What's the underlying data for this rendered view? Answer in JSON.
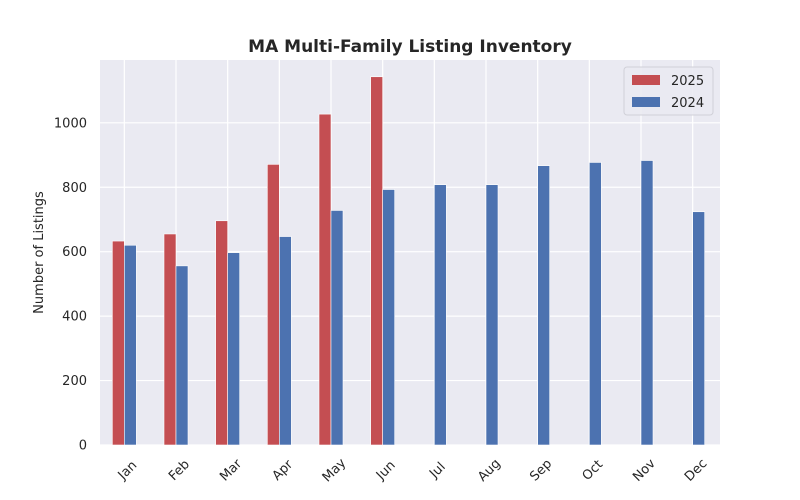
{
  "chart_data": {
    "type": "bar",
    "title": "MA Multi-Family Listing Inventory",
    "xlabel": "",
    "ylabel": "Number of Listings",
    "categories": [
      "Jan",
      "Feb",
      "Mar",
      "Apr",
      "May",
      "Jun",
      "Jul",
      "Aug",
      "Sep",
      "Oct",
      "Nov",
      "Dec"
    ],
    "series": [
      {
        "name": "2025",
        "color": "#c44e52",
        "values": [
          633,
          655,
          696,
          871,
          1027,
          1143,
          null,
          null,
          null,
          null,
          null,
          null
        ]
      },
      {
        "name": "2024",
        "color": "#4c72b0",
        "values": [
          620,
          556,
          597,
          647,
          728,
          793,
          808,
          808,
          867,
          877,
          883,
          724
        ]
      }
    ],
    "ylim": [
      0,
      1195
    ],
    "yticks": [
      0,
      200,
      400,
      600,
      800,
      1000
    ],
    "grid": true,
    "legend_position": "top-right",
    "background_color": "#eaeaf2",
    "grid_color": "#ffffff"
  }
}
